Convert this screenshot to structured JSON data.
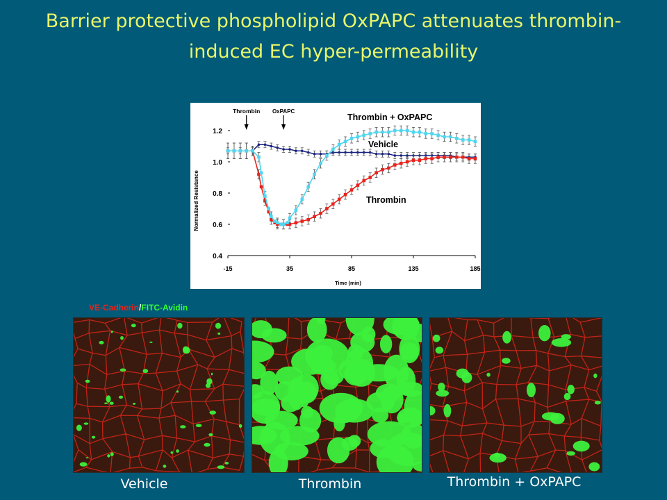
{
  "slide": {
    "title_line1": "Barrier protective phospholipid  OxPAPC attenuates thrombin-",
    "title_line2": "induced  EC hyper-permeability"
  },
  "chart_data": {
    "type": "line",
    "xlabel": "Time (min)",
    "ylabel": "Normalized Resistance",
    "xlim": [
      -15,
      185
    ],
    "ylim": [
      0.4,
      1.2
    ],
    "x_ticks": [
      "-15",
      "35",
      "85",
      "135",
      "185"
    ],
    "y_ticks": [
      "0.4",
      "0.6",
      "0.8",
      "1.0",
      "1.2"
    ],
    "annotations": [
      "Thrombin",
      "OxPAPC"
    ],
    "series": [
      {
        "name": "Vehicle",
        "color": "#1a237e",
        "x": [
          -15,
          -5,
          5,
          10,
          15,
          20,
          25,
          30,
          35,
          40,
          45,
          50,
          55,
          60,
          65,
          70,
          75,
          80,
          85,
          90,
          95,
          100,
          105,
          110,
          115,
          120,
          125,
          130,
          135,
          140,
          145,
          150,
          155,
          160,
          165,
          170,
          175,
          180,
          185
        ],
        "y": [
          1.07,
          1.07,
          1.07,
          1.11,
          1.11,
          1.1,
          1.09,
          1.08,
          1.08,
          1.07,
          1.07,
          1.06,
          1.05,
          1.05,
          1.05,
          1.06,
          1.06,
          1.06,
          1.06,
          1.06,
          1.06,
          1.06,
          1.05,
          1.05,
          1.05,
          1.04,
          1.04,
          1.04,
          1.04,
          1.04,
          1.04,
          1.04,
          1.04,
          1.04,
          1.04,
          1.03,
          1.03,
          1.03,
          1.03
        ]
      },
      {
        "name": "Thrombin",
        "color": "#e8231b",
        "x": [
          -15,
          -10,
          -5,
          0,
          5,
          10,
          12,
          15,
          18,
          20,
          23,
          25,
          28,
          30,
          33,
          35,
          40,
          45,
          50,
          55,
          60,
          65,
          70,
          75,
          80,
          85,
          90,
          95,
          100,
          105,
          110,
          115,
          120,
          125,
          130,
          135,
          140,
          145,
          150,
          155,
          160,
          165,
          170,
          175,
          180,
          185
        ],
        "y": [
          1.07,
          1.07,
          1.07,
          1.07,
          1.07,
          0.92,
          0.84,
          0.75,
          0.68,
          0.63,
          0.61,
          0.6,
          0.6,
          0.6,
          0.6,
          0.6,
          0.61,
          0.62,
          0.63,
          0.65,
          0.67,
          0.7,
          0.73,
          0.76,
          0.79,
          0.82,
          0.85,
          0.88,
          0.9,
          0.93,
          0.95,
          0.96,
          0.98,
          0.99,
          1.0,
          1.01,
          1.01,
          1.02,
          1.02,
          1.03,
          1.03,
          1.03,
          1.03,
          1.03,
          1.02,
          1.02
        ]
      },
      {
        "name": "Thrombin + OxPAPC",
        "color": "#4fd6f0",
        "x": [
          -15,
          -10,
          -5,
          0,
          5,
          10,
          12,
          15,
          18,
          20,
          23,
          25,
          28,
          30,
          33,
          35,
          40,
          45,
          50,
          55,
          60,
          65,
          70,
          75,
          80,
          85,
          90,
          95,
          100,
          105,
          110,
          115,
          120,
          125,
          130,
          135,
          140,
          145,
          150,
          155,
          160,
          165,
          170,
          175,
          180,
          185
        ],
        "y": [
          1.07,
          1.07,
          1.07,
          1.07,
          1.07,
          1.03,
          0.93,
          0.78,
          0.7,
          0.65,
          0.62,
          0.61,
          0.6,
          0.6,
          0.61,
          0.64,
          0.69,
          0.76,
          0.84,
          0.92,
          0.99,
          1.04,
          1.08,
          1.11,
          1.13,
          1.15,
          1.16,
          1.17,
          1.18,
          1.19,
          1.19,
          1.19,
          1.2,
          1.2,
          1.2,
          1.19,
          1.19,
          1.18,
          1.18,
          1.17,
          1.16,
          1.16,
          1.15,
          1.14,
          1.14,
          1.13
        ]
      }
    ]
  },
  "stain_legend": {
    "ve_cadherin": "VE-Cadherin",
    "separator": "/",
    "fitc_avidin": "FITC-Avidin"
  },
  "panels": {
    "vehicle": "Vehicle",
    "thrombin": "Thrombin",
    "thrombin_oxpapc": "Thrombin + OxPAPC"
  },
  "colors": {
    "background": "#005a78",
    "title": "#e8f56a",
    "stain_red": "#e8231b",
    "stain_green": "#33ff33"
  }
}
